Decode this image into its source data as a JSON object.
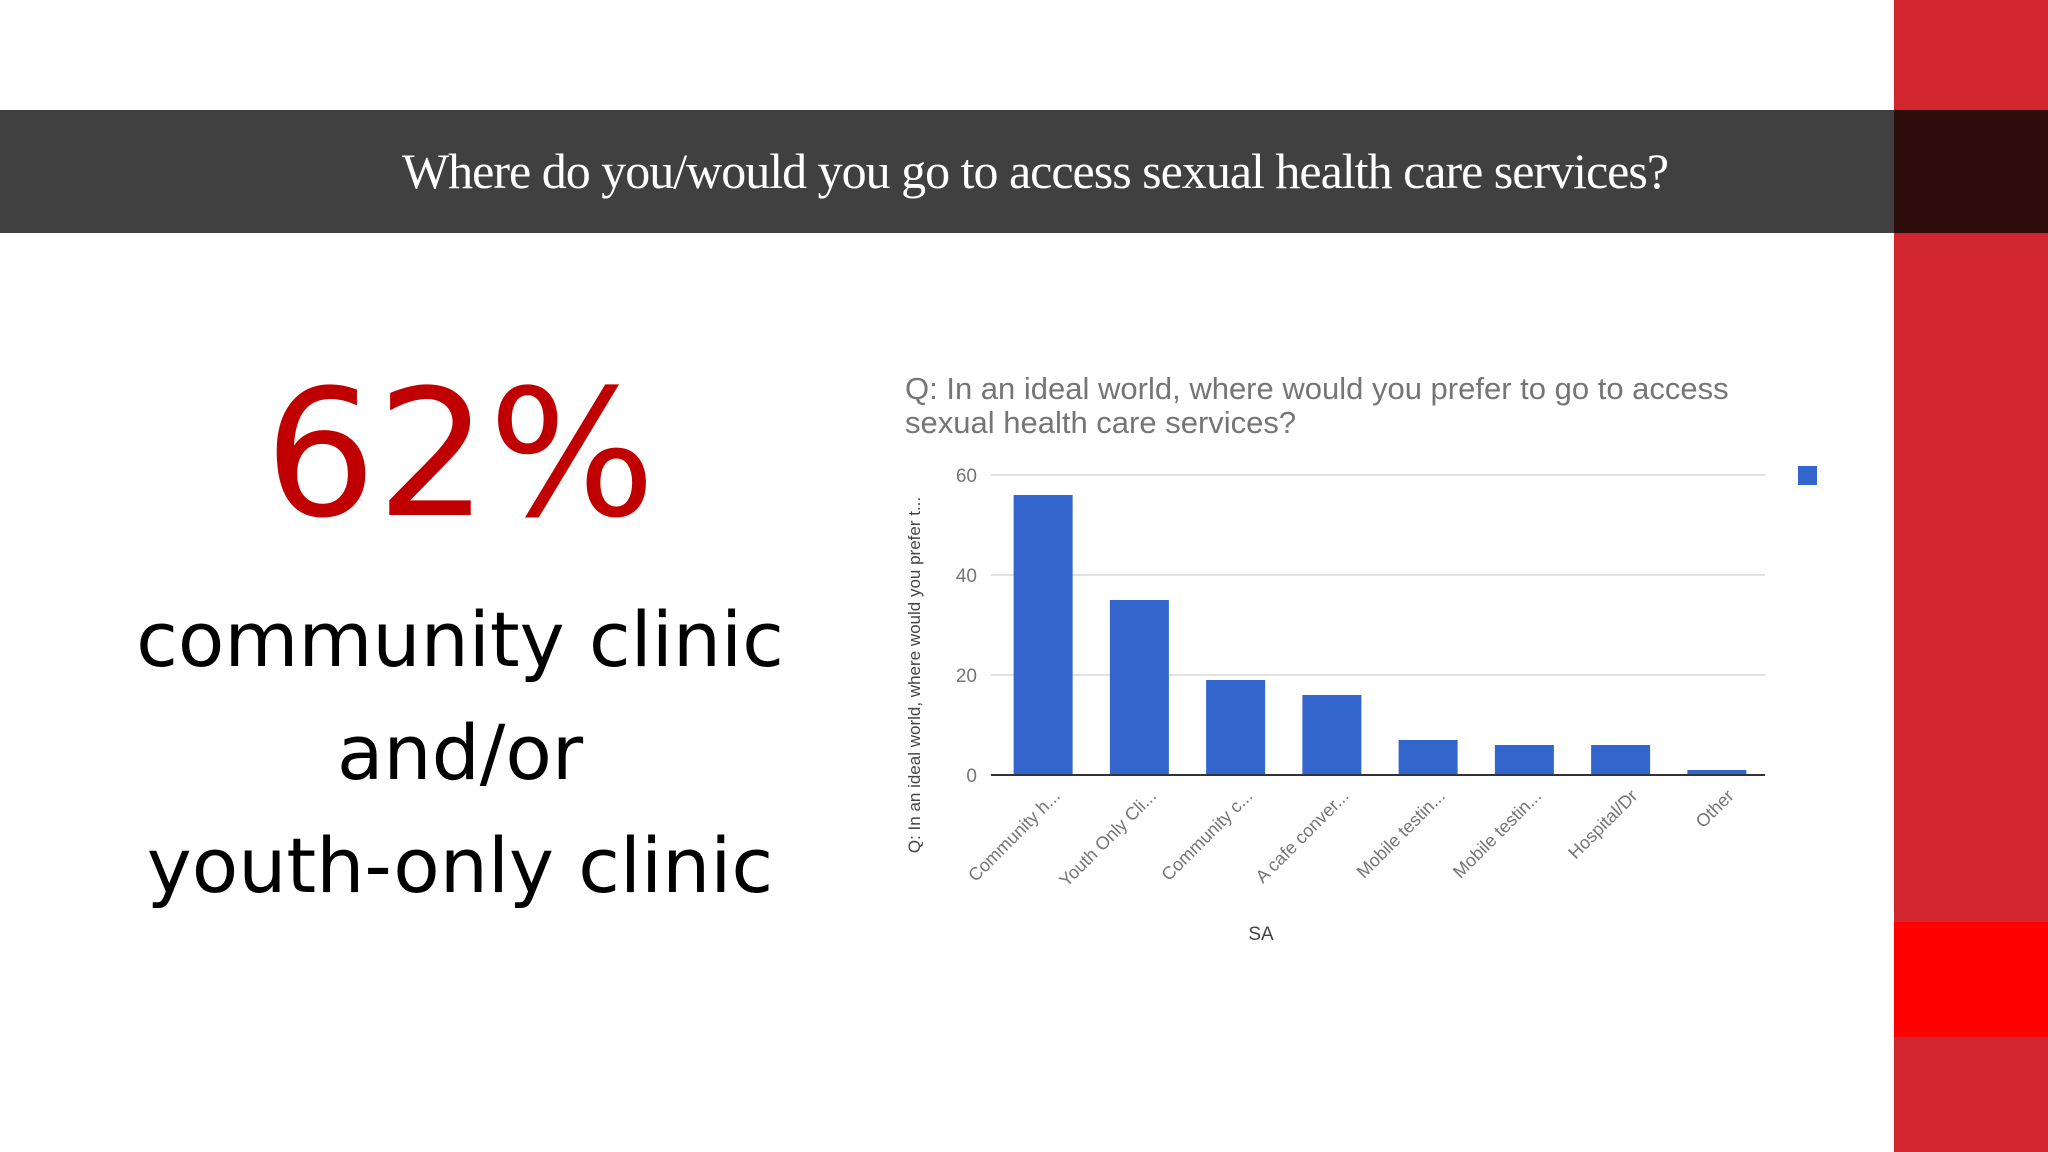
{
  "slide": {
    "title": "Where do you/would you go to access sexual health care services?",
    "stat_value": "62%",
    "stat_caption": [
      "community clinic",
      "and/or",
      "youth-only clinic"
    ],
    "colors": {
      "accent_red": "#c00000",
      "title_band": "#404040",
      "side_bar": "#d2262e",
      "bar_fill": "#3366cc"
    }
  },
  "chart_data": {
    "type": "bar",
    "title_lines": [
      "Q: In an ideal world, where would you prefer to go to access",
      "sexual health care services?"
    ],
    "xlabel": "SA",
    "ylabel": "Q: In an ideal world, where would you prefer t...",
    "categories": [
      "Community h...",
      "Youth Only Cli...",
      "Community c...",
      "A cafe conver...",
      "Mobile testin...",
      "Mobile testin...",
      "Hospital/Dr",
      "Other"
    ],
    "values": [
      56,
      35,
      19,
      16,
      7,
      6,
      6,
      1
    ],
    "ylim": [
      0,
      60
    ],
    "yticks": [
      0,
      20,
      40,
      60
    ],
    "grid": true,
    "legend": "top-right",
    "bar_color": "#3366cc"
  }
}
